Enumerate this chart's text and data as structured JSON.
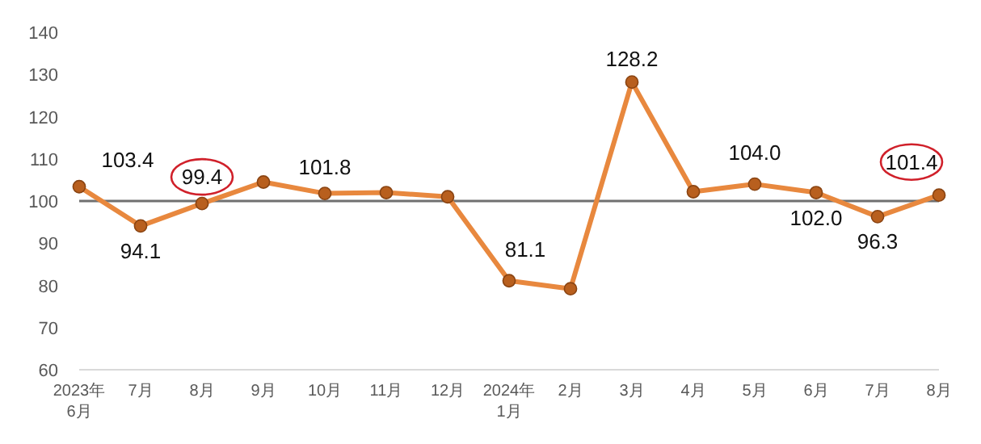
{
  "chart_data": {
    "type": "line",
    "categories": [
      "2023年\n6月",
      "7月",
      "8月",
      "9月",
      "10月",
      "11月",
      "12月",
      "2024年\n1月",
      "2月",
      "3月",
      "4月",
      "5月",
      "6月",
      "7月",
      "8月"
    ],
    "series": [
      {
        "color": "#e8883e",
        "values": [
          103.4,
          94.1,
          99.4,
          104.5,
          101.8,
          102.0,
          101.0,
          81.1,
          79.2,
          128.2,
          102.2,
          104.0,
          102.0,
          96.3,
          101.4
        ],
        "value_labels": [
          "103.4",
          "94.1",
          "99.4",
          null,
          "101.8",
          null,
          null,
          "81.1",
          null,
          "128.2",
          null,
          "104.0",
          "102.0",
          "96.3",
          "101.4"
        ]
      }
    ],
    "ylim": [
      60,
      140
    ],
    "yticks": [
      60,
      70,
      80,
      90,
      100,
      110,
      120,
      130,
      140
    ],
    "grid": false,
    "marker": "circle",
    "line_style": "solid",
    "ref_lines": [
      {
        "axis": "y",
        "value": 100,
        "color": "#707070"
      }
    ]
  }
}
